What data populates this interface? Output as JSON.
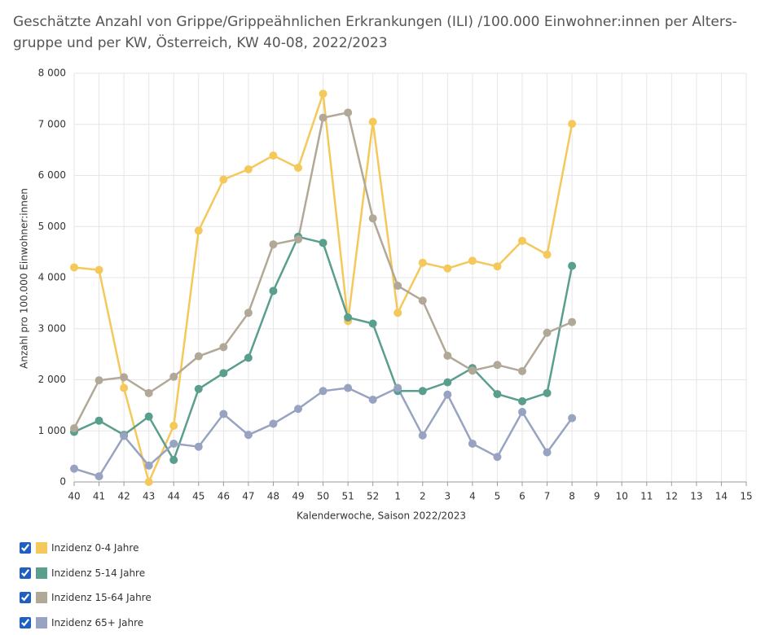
{
  "chart_data": {
    "type": "line",
    "title": [
      "Geschätzte Anzahl von Grippe/Grippeähnlichen Erkrankungen (ILI) /100.000 Einwohner:innen per Alters-",
      "gruppe und per KW, Österreich, KW 40-08, 2022/2023"
    ],
    "x_label": "Kalenderwoche, Saison 2022/2023",
    "y_label": "Anzahl pro 100.000 Einwohner:innen",
    "categories": [
      "40",
      "41",
      "42",
      "43",
      "44",
      "45",
      "46",
      "47",
      "48",
      "49",
      "50",
      "51",
      "52",
      "1",
      "2",
      "3",
      "4",
      "5",
      "6",
      "7",
      "8",
      "9",
      "10",
      "11",
      "12",
      "13",
      "14",
      "15"
    ],
    "ylim": [
      0,
      8000
    ],
    "yticks": [
      0,
      {
        "value": 1000,
        "label": "1 000"
      },
      {
        "value": 2000,
        "label": "2 000"
      },
      {
        "value": 3000,
        "label": "3 000"
      },
      {
        "value": 4000,
        "label": "4 000"
      },
      {
        "value": 5000,
        "label": "5 000"
      },
      {
        "value": 6000,
        "label": "6 000"
      },
      {
        "value": 7000,
        "label": "7 000"
      },
      {
        "value": 8000,
        "label": "8 000"
      }
    ],
    "grid": true,
    "series": [
      {
        "name": "Inzidenz 0-4 Jahre",
        "color": "#f5c85b",
        "values": [
          4200,
          4150,
          1840,
          0,
          1100,
          4920,
          5920,
          6120,
          6390,
          6150,
          7600,
          3150,
          7050,
          3310,
          4290,
          4180,
          4330,
          4220,
          4720,
          4450,
          7010,
          null,
          null,
          null,
          null,
          null,
          null,
          null
        ]
      },
      {
        "name": "Inzidenz 5-14 Jahre",
        "color": "#5a9e8e",
        "values": [
          980,
          1200,
          920,
          1280,
          430,
          1820,
          2130,
          2430,
          3740,
          4800,
          4680,
          3220,
          3100,
          1780,
          1780,
          1950,
          2230,
          1720,
          1580,
          1740,
          4230,
          null,
          null,
          null,
          null,
          null,
          null,
          null
        ]
      },
      {
        "name": "Inzidenz 15-64 Jahre",
        "color": "#b2a898",
        "values": [
          1050,
          1990,
          2050,
          1740,
          2060,
          2460,
          2640,
          3310,
          4650,
          4750,
          7130,
          7230,
          5160,
          3840,
          3550,
          2470,
          2180,
          2290,
          2170,
          2920,
          3130,
          null,
          null,
          null,
          null,
          null,
          null,
          null
        ]
      },
      {
        "name": "Inzidenz 65+ Jahre",
        "color": "#97a3c0",
        "values": [
          260,
          110,
          900,
          320,
          750,
          690,
          1330,
          920,
          1140,
          1430,
          1780,
          1840,
          1610,
          1840,
          910,
          1710,
          750,
          490,
          1370,
          580,
          1250,
          null,
          null,
          null,
          null,
          null,
          null,
          null
        ]
      }
    ]
  }
}
